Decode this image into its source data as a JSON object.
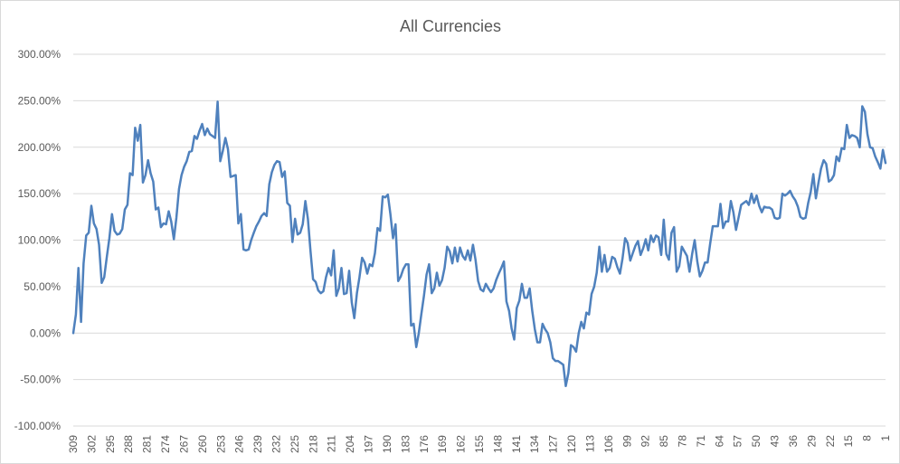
{
  "chart_data": {
    "type": "line",
    "title": "All Currencies",
    "xlabel": "",
    "ylabel": "",
    "x_start": 309,
    "x_end": 1,
    "x_ticks": [
      "309",
      "302",
      "295",
      "288",
      "281",
      "274",
      "267",
      "260",
      "253",
      "246",
      "239",
      "232",
      "225",
      "218",
      "211",
      "204",
      "197",
      "190",
      "183",
      "176",
      "169",
      "162",
      "155",
      "148",
      "141",
      "134",
      "127",
      "120",
      "113",
      "106",
      "99",
      "92",
      "85",
      "78",
      "71",
      "64",
      "57",
      "50",
      "43",
      "36",
      "29",
      "22",
      "15",
      "8",
      "1"
    ],
    "y_ticks": [
      "300.00%",
      "250.00%",
      "200.00%",
      "150.00%",
      "100.00%",
      "50.00%",
      "0.00%",
      "-50.00%",
      "-100.00%"
    ],
    "ylim": [
      -100,
      300
    ],
    "grid": true,
    "legend": "none",
    "line_color": "#4f81bd",
    "series": [
      {
        "values": [
          0,
          20,
          70,
          12,
          75,
          105,
          108,
          137,
          118,
          112,
          95,
          54,
          60,
          82,
          102,
          128,
          110,
          106,
          107,
          112,
          133,
          138,
          172,
          170,
          221,
          207,
          224,
          162,
          170,
          186,
          172,
          163,
          133,
          135,
          114,
          118,
          117,
          131,
          120,
          101,
          124,
          155,
          170,
          179,
          185,
          195,
          196,
          212,
          209,
          218,
          225,
          213,
          220,
          214,
          212,
          210,
          249,
          185,
          196,
          210,
          198,
          168,
          169,
          170,
          118,
          128,
          90,
          89,
          90,
          100,
          108,
          115,
          120,
          126,
          129,
          126,
          160,
          173,
          181,
          185,
          184,
          168,
          174,
          140,
          137,
          98,
          123,
          106,
          108,
          117,
          142,
          123,
          88,
          58,
          55,
          46,
          43,
          45,
          60,
          70,
          62,
          89,
          40,
          48,
          70,
          42,
          43,
          67,
          33,
          16,
          43,
          60,
          81,
          76,
          64,
          74,
          72,
          86,
          113,
          110,
          147,
          146,
          149,
          128,
          102,
          117,
          56,
          61,
          69,
          74,
          74,
          8,
          10,
          -15,
          0,
          21,
          40,
          63,
          74,
          43,
          48,
          65,
          51,
          57,
          70,
          93,
          88,
          75,
          92,
          77,
          92,
          83,
          79,
          89,
          78,
          95,
          79,
          56,
          47,
          45,
          53,
          48,
          44,
          48,
          57,
          64,
          70,
          77,
          34,
          24,
          5,
          -7,
          27,
          35,
          53,
          38,
          38,
          48,
          24,
          4,
          -10,
          -10,
          10,
          4,
          0,
          -10,
          -27,
          -30,
          -30,
          -32,
          -34,
          -57,
          -43,
          -13,
          -15,
          -20,
          0,
          12,
          5,
          22,
          20,
          42,
          50,
          65,
          93,
          66,
          84,
          66,
          70,
          82,
          80,
          71,
          64,
          80,
          102,
          97,
          78,
          86,
          94,
          99,
          84,
          91,
          101,
          89,
          105,
          98,
          105,
          103,
          84,
          122,
          85,
          79,
          108,
          114,
          66,
          72,
          93,
          88,
          83,
          66,
          85,
          100,
          77,
          61,
          67,
          76,
          76,
          96,
          115,
          115,
          115,
          139,
          113,
          120,
          120,
          142,
          130,
          111,
          124,
          138,
          140,
          142,
          138,
          150,
          140,
          148,
          137,
          130,
          136,
          135,
          135,
          133,
          124,
          123,
          124,
          150,
          148,
          150,
          153,
          147,
          143,
          136,
          125,
          123,
          124,
          140,
          152,
          171,
          145,
          162,
          177,
          186,
          182,
          163,
          165,
          170,
          190,
          185,
          199,
          198,
          224,
          210,
          213,
          212,
          210,
          200,
          244,
          238,
          214,
          200,
          199,
          190,
          184,
          177,
          197,
          183
        ]
      }
    ]
  }
}
